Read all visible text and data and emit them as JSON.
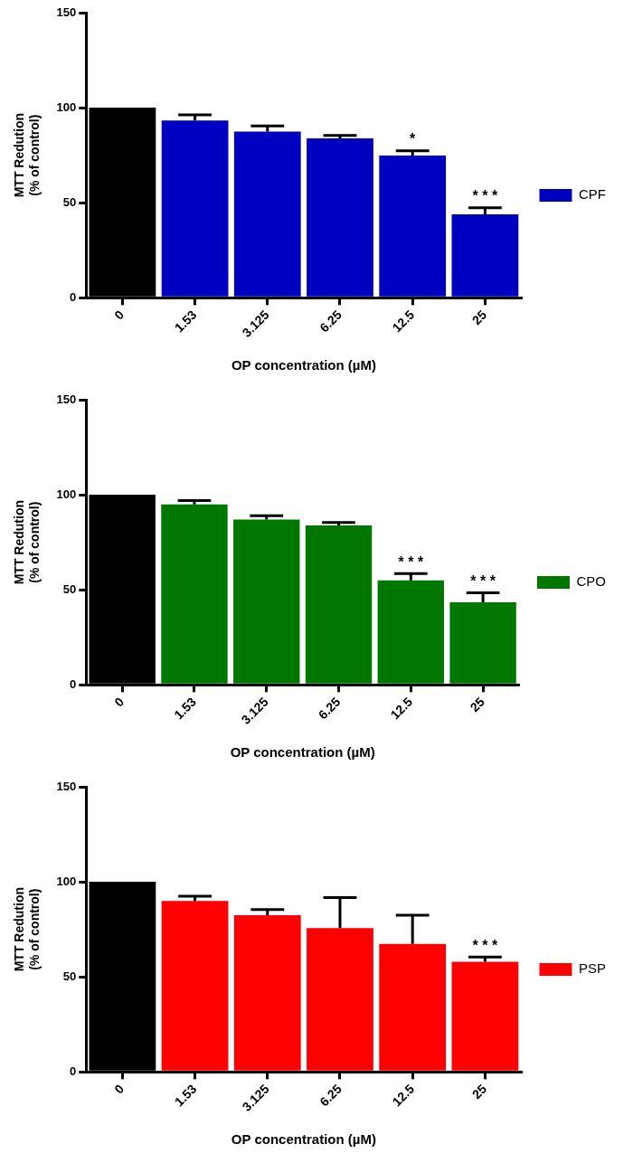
{
  "chart_data": [
    {
      "type": "bar",
      "xlabel": "OP concentration (µM)",
      "ylabel": "MTT Redution\n(% of control)",
      "categories": [
        "0",
        "1.53",
        "3.125",
        "6.25",
        "12.5",
        "25"
      ],
      "series": [
        {
          "name": "CPF",
          "color": "#0000c0",
          "colors": [
            "#000000",
            "#0000c0",
            "#0000c0",
            "#0000c0",
            "#0000c0",
            "#0000c0"
          ],
          "values": [
            100,
            93.3,
            87.4,
            83.9,
            74.9,
            43.9
          ],
          "errors": [
            null,
            3,
            3,
            1.5,
            2.5,
            3.5
          ]
        }
      ],
      "ylim": [
        0,
        150
      ],
      "yticks": [
        0,
        50,
        100,
        150
      ],
      "grid": false,
      "legend": "right",
      "annotations": [
        {
          "text": "*",
          "x": "12.5",
          "y": 77.4
        },
        {
          "text": "* * *",
          "x": "25",
          "y": 47.4
        }
      ]
    },
    {
      "type": "bar",
      "xlabel": "OP concentration (µM)",
      "ylabel": "MTT Redution\n(% of control)",
      "categories": [
        "0",
        "1.53",
        "3.125",
        "6.25",
        "12.5",
        "25"
      ],
      "series": [
        {
          "name": "CPO",
          "color": "#007800",
          "colors": [
            "#000000",
            "#007800",
            "#007800",
            "#007800",
            "#007800",
            "#007800"
          ],
          "values": [
            100,
            95,
            87,
            83.9,
            55,
            43.5
          ],
          "errors": [
            null,
            2,
            2,
            1.5,
            3.5,
            5
          ]
        }
      ],
      "ylim": [
        0,
        150
      ],
      "yticks": [
        0,
        50,
        100,
        150
      ],
      "grid": false,
      "legend": "right",
      "annotations": [
        {
          "text": "* * *",
          "x": "12.5",
          "y": 58.5
        },
        {
          "text": "* * *",
          "x": "25",
          "y": 48.5
        }
      ]
    },
    {
      "type": "bar",
      "xlabel": "OP concentration (µM)",
      "ylabel": "MTT Redution\n(% of control)",
      "categories": [
        "0",
        "1.53",
        "3.125",
        "6.25",
        "12.5",
        "25"
      ],
      "series": [
        {
          "name": "PSP",
          "color": "#ff0000",
          "colors": [
            "#000000",
            "#ff0000",
            "#ff0000",
            "#ff0000",
            "#ff0000",
            "#ff0000"
          ],
          "values": [
            100,
            89.9,
            82.4,
            75.7,
            67.4,
            57.9
          ],
          "errors": [
            null,
            2.5,
            3,
            16,
            15,
            2.5
          ]
        }
      ],
      "ylim": [
        0,
        150
      ],
      "yticks": [
        0,
        50,
        100,
        150
      ],
      "grid": false,
      "legend": "right",
      "annotations": [
        {
          "text": "* * *",
          "x": "25",
          "y": 60.4
        }
      ]
    }
  ]
}
